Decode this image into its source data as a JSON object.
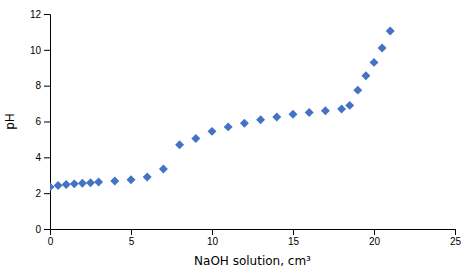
{
  "chart_data": {
    "type": "scatter",
    "x_label": "NaOH solution, cm³",
    "y_label": "pH",
    "x": [
      0,
      0.5,
      1,
      1.5,
      2,
      2.5,
      3,
      4,
      5,
      6,
      7,
      8,
      9,
      10,
      11,
      12,
      13,
      14,
      15,
      16,
      17,
      18,
      18.5,
      19,
      19.5,
      20,
      20.5,
      21
    ],
    "values": [
      2.35,
      2.43,
      2.48,
      2.52,
      2.55,
      2.58,
      2.62,
      2.68,
      2.75,
      2.9,
      3.35,
      4.7,
      5.05,
      5.45,
      5.7,
      5.9,
      6.1,
      6.25,
      6.4,
      6.5,
      6.6,
      6.7,
      6.9,
      7.75,
      8.55,
      9.3,
      10.1,
      11.05
    ],
    "color": "#4472C4",
    "marker": "diamond",
    "xlim": [
      0,
      25
    ],
    "ylim": [
      0,
      12
    ],
    "xticks": [
      0,
      5,
      10,
      15,
      20,
      25
    ],
    "yticks": [
      0,
      2,
      4,
      6,
      8,
      10,
      12
    ],
    "grid": false
  }
}
